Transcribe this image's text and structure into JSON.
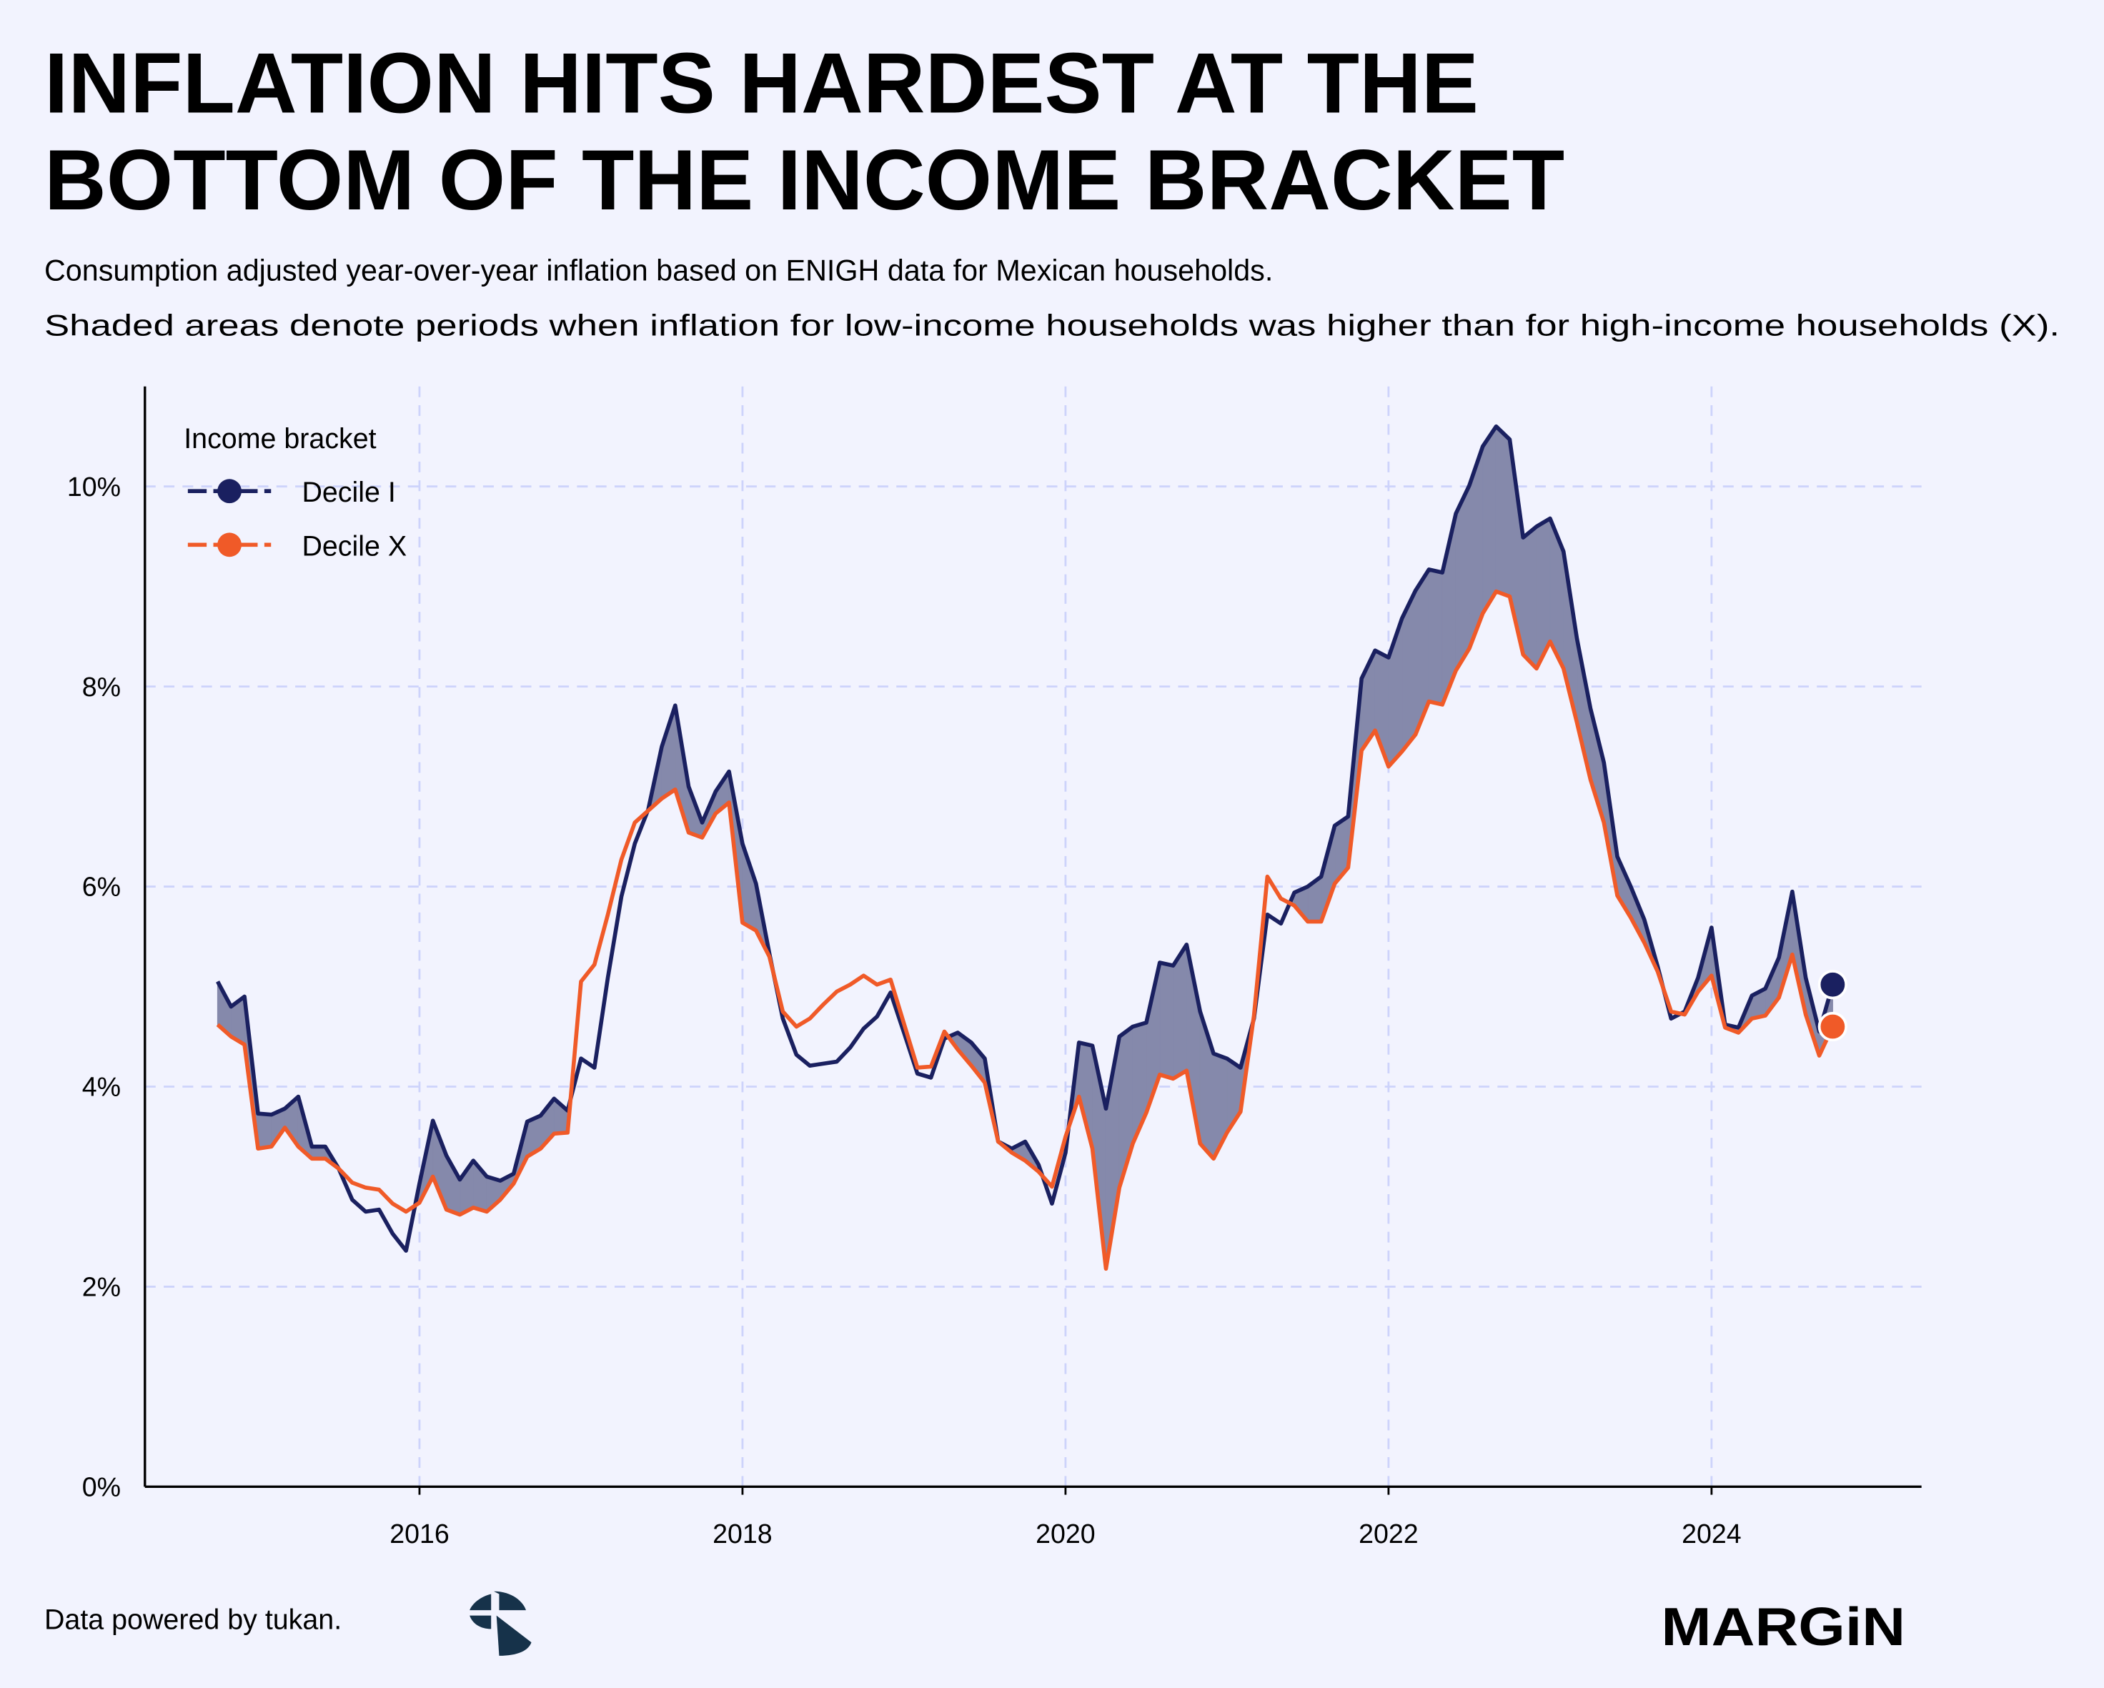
{
  "header": {
    "title_line1": "INFLATION HITS HARDEST AT THE",
    "title_line2": "BOTTOM OF THE INCOME BRACKET",
    "subtitle_line1": "Consumption adjusted year-over-year inflation based on ENIGH data for Mexican households.",
    "subtitle_line2": "Shaded areas denote periods when inflation for low-income households was higher than for high-income households (X)."
  },
  "footer": {
    "credit": "Data powered by tukan.",
    "brand": "MARGiN"
  },
  "colors": {
    "background": "#F2F3FE",
    "decile_i": "#1A2060",
    "decile_x": "#F05A28",
    "shade": "#8589AB",
    "grid": "#CDD3FB"
  },
  "chart_data": {
    "type": "line",
    "title": "INFLATION HITS HARDEST AT THE BOTTOM OF THE INCOME BRACKET",
    "xlabel": "",
    "ylabel": "",
    "x_start": "2014-10",
    "x_frequency": "monthly",
    "x_range": [
      2014.3,
      2025.3
    ],
    "ylim": [
      0,
      11
    ],
    "grid": true,
    "x_ticks": [
      2016,
      2018,
      2020,
      2022,
      2024
    ],
    "x_tick_labels": [
      "2016",
      "2018",
      "2020",
      "2022",
      "2024"
    ],
    "y_ticks": [
      0,
      2,
      4,
      6,
      8,
      10
    ],
    "y_tick_labels": [
      "0%",
      "2%",
      "4%",
      "6%",
      "8%",
      "10%"
    ],
    "legend": {
      "title": "Income bracket",
      "position": "top-left"
    },
    "shading": "area between Decile I and Decile X where Decile I > Decile X",
    "series": [
      {
        "name": "Decile I",
        "color": "#1A2060",
        "values": [
          5.05,
          4.8,
          4.9,
          3.73,
          3.72,
          3.78,
          3.9,
          3.4,
          3.4,
          3.18,
          2.87,
          2.75,
          2.77,
          2.53,
          2.36,
          3.03,
          3.66,
          3.31,
          3.07,
          3.26,
          3.1,
          3.06,
          3.13,
          3.65,
          3.71,
          3.88,
          3.76,
          4.28,
          4.19,
          5.09,
          5.9,
          6.43,
          6.77,
          7.4,
          7.81,
          7.0,
          6.64,
          6.95,
          7.15,
          6.43,
          6.03,
          5.33,
          4.68,
          4.32,
          4.21,
          4.23,
          4.25,
          4.39,
          4.58,
          4.7,
          4.94,
          4.54,
          4.13,
          4.09,
          4.48,
          4.54,
          4.44,
          4.28,
          3.45,
          3.38,
          3.45,
          3.22,
          2.83,
          3.34,
          4.44,
          4.41,
          3.78,
          4.5,
          4.6,
          4.64,
          5.24,
          5.21,
          5.42,
          4.75,
          4.33,
          4.28,
          4.19,
          4.68,
          5.72,
          5.63,
          5.94,
          6.0,
          6.1,
          6.61,
          6.7,
          8.08,
          8.36,
          8.29,
          8.68,
          8.96,
          9.17,
          9.14,
          9.73,
          10.01,
          10.4,
          10.6,
          10.47,
          9.49,
          9.6,
          9.68,
          9.35,
          8.48,
          7.78,
          7.24,
          6.3,
          6.0,
          5.67,
          5.2,
          4.68,
          4.75,
          5.09,
          5.59,
          4.62,
          4.59,
          4.91,
          4.98,
          5.29,
          5.95,
          5.09,
          4.55,
          5.02
        ]
      },
      {
        "name": "Decile X",
        "color": "#F05A28",
        "values": [
          4.62,
          4.5,
          4.42,
          3.38,
          3.4,
          3.59,
          3.4,
          3.28,
          3.28,
          3.18,
          3.04,
          2.99,
          2.97,
          2.83,
          2.75,
          2.84,
          3.1,
          2.77,
          2.72,
          2.79,
          2.75,
          2.87,
          3.03,
          3.3,
          3.38,
          3.53,
          3.54,
          5.05,
          5.22,
          5.72,
          6.27,
          6.64,
          6.76,
          6.88,
          6.97,
          6.54,
          6.49,
          6.73,
          6.84,
          5.64,
          5.56,
          5.3,
          4.75,
          4.6,
          4.68,
          4.82,
          4.95,
          5.02,
          5.11,
          5.02,
          5.07,
          4.63,
          4.19,
          4.2,
          4.55,
          4.37,
          4.21,
          4.04,
          3.45,
          3.34,
          3.26,
          3.15,
          3.0,
          3.5,
          3.9,
          3.38,
          2.18,
          2.99,
          3.43,
          3.74,
          4.12,
          4.08,
          4.16,
          3.43,
          3.28,
          3.54,
          3.75,
          4.71,
          6.1,
          5.88,
          5.81,
          5.65,
          5.65,
          6.03,
          6.19,
          7.36,
          7.56,
          7.2,
          7.35,
          7.52,
          7.85,
          7.82,
          8.16,
          8.38,
          8.73,
          8.95,
          8.9,
          8.32,
          8.18,
          8.45,
          8.18,
          7.64,
          7.07,
          6.64,
          5.91,
          5.69,
          5.44,
          5.15,
          4.75,
          4.72,
          4.95,
          5.11,
          4.59,
          4.54,
          4.68,
          4.71,
          4.89,
          5.32,
          4.72,
          4.31,
          4.6
        ]
      }
    ]
  }
}
